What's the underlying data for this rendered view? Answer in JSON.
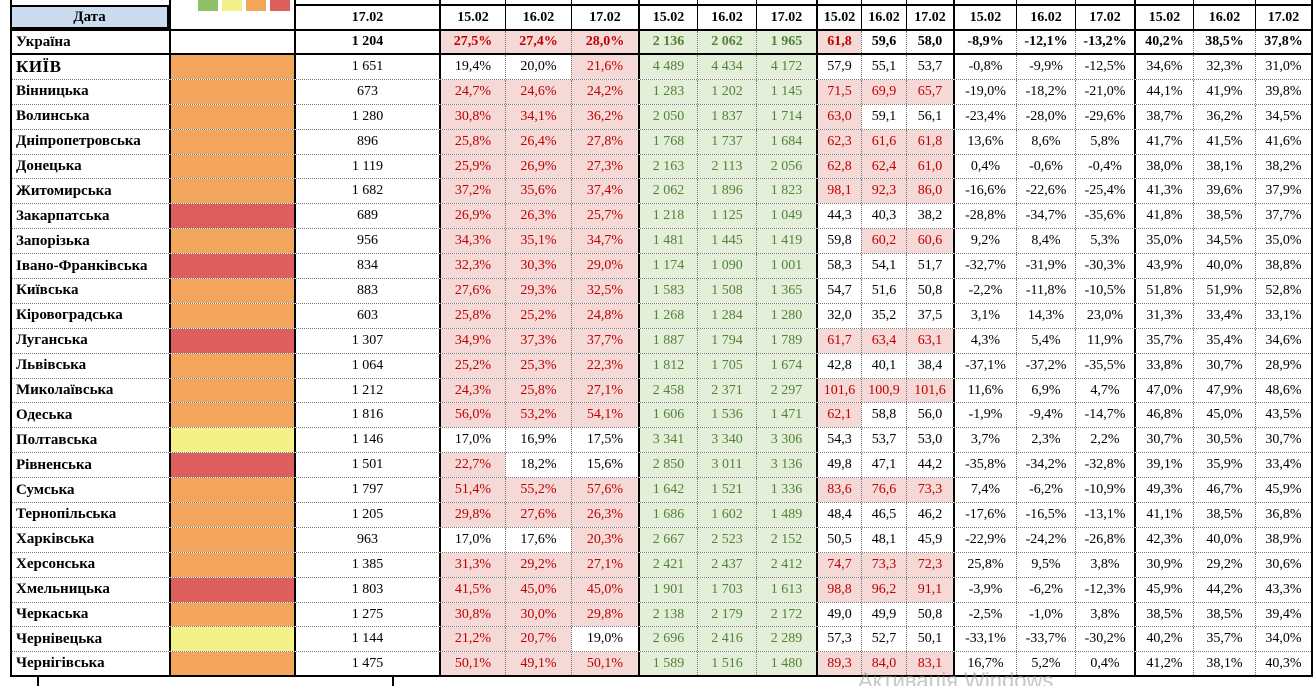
{
  "header": {
    "date_label": "Дата",
    "cases_col": "17.02",
    "group_dates": [
      "15.02",
      "16.02",
      "17.02"
    ]
  },
  "legend": {
    "square_colors": [
      "#8fc06a",
      "#f4f189",
      "#f4a55c",
      "#dd5e5c"
    ],
    "square_names": [
      "green",
      "yellow",
      "orange",
      "red"
    ]
  },
  "palette": {
    "blue_header": "#cbdcf0",
    "pink_bg": "#f5d9d7",
    "dark_red": "#c00000",
    "green_bg": "#e4efda",
    "green_text": "#548235",
    "orange": "#f4a55c",
    "red": "#dd5e5c",
    "yellow": "#f4f189",
    "none": "#ffffff"
  },
  "thresholds": {
    "positivity_pink_above": 20,
    "occupancy_pink_above": 60
  },
  "watermark": "Активація Windows",
  "rows": [
    {
      "name": "Україна",
      "bold": true,
      "risk": "none",
      "cases": "1 204",
      "positivity": [
        "27,5%",
        "27,4%",
        "28,0%"
      ],
      "tests": [
        "2 136",
        "2 062",
        "1 965"
      ],
      "occupancy": [
        "61,8",
        "59,6",
        "58,0"
      ],
      "change": [
        "-8,9%",
        "-12,1%",
        "-13,2%"
      ],
      "share": [
        "40,2%",
        "38,5%",
        "37,8%"
      ]
    },
    {
      "name": "КИЇВ",
      "bold": false,
      "risk": "orange",
      "cases": "1 651",
      "positivity": [
        "19,4%",
        "20,0%",
        "21,6%"
      ],
      "tests": [
        "4 489",
        "4 434",
        "4 172"
      ],
      "occupancy": [
        "57,9",
        "55,1",
        "53,7"
      ],
      "change": [
        "-0,8%",
        "-9,9%",
        "-12,5%"
      ],
      "share": [
        "34,6%",
        "32,3%",
        "31,0%"
      ]
    },
    {
      "name": "Вінницька",
      "bold": false,
      "risk": "orange",
      "cases": "673",
      "positivity": [
        "24,7%",
        "24,6%",
        "24,2%"
      ],
      "tests": [
        "1 283",
        "1 202",
        "1 145"
      ],
      "occupancy": [
        "71,5",
        "69,9",
        "65,7"
      ],
      "change": [
        "-19,0%",
        "-18,2%",
        "-21,0%"
      ],
      "share": [
        "44,1%",
        "41,9%",
        "39,8%"
      ]
    },
    {
      "name": "Волинська",
      "bold": false,
      "risk": "orange",
      "cases": "1 280",
      "positivity": [
        "30,8%",
        "34,1%",
        "36,2%"
      ],
      "tests": [
        "2 050",
        "1 837",
        "1 714"
      ],
      "occupancy": [
        "63,0",
        "59,1",
        "56,1"
      ],
      "change": [
        "-23,4%",
        "-28,0%",
        "-29,6%"
      ],
      "share": [
        "38,7%",
        "36,2%",
        "34,5%"
      ]
    },
    {
      "name": "Дніпропетровська",
      "bold": false,
      "risk": "orange",
      "cases": "896",
      "positivity": [
        "25,8%",
        "26,4%",
        "27,8%"
      ],
      "tests": [
        "1 768",
        "1 737",
        "1 684"
      ],
      "occupancy": [
        "62,3",
        "61,6",
        "61,8"
      ],
      "change": [
        "13,6%",
        "8,6%",
        "5,8%"
      ],
      "share": [
        "41,7%",
        "41,5%",
        "41,6%"
      ]
    },
    {
      "name": "Донецька",
      "bold": false,
      "risk": "orange",
      "cases": "1 119",
      "positivity": [
        "25,9%",
        "26,9%",
        "27,3%"
      ],
      "tests": [
        "2 163",
        "2 113",
        "2 056"
      ],
      "occupancy": [
        "62,8",
        "62,4",
        "61,0"
      ],
      "change": [
        "0,4%",
        "-0,6%",
        "-0,4%"
      ],
      "share": [
        "38,0%",
        "38,1%",
        "38,2%"
      ]
    },
    {
      "name": "Житомирська",
      "bold": false,
      "risk": "orange",
      "cases": "1 682",
      "positivity": [
        "37,2%",
        "35,6%",
        "37,4%"
      ],
      "tests": [
        "2 062",
        "1 896",
        "1 823"
      ],
      "occupancy": [
        "98,1",
        "92,3",
        "86,0"
      ],
      "change": [
        "-16,6%",
        "-22,6%",
        "-25,4%"
      ],
      "share": [
        "41,3%",
        "39,6%",
        "37,9%"
      ]
    },
    {
      "name": "Закарпатська",
      "bold": false,
      "risk": "red",
      "cases": "689",
      "positivity": [
        "26,9%",
        "26,3%",
        "25,7%"
      ],
      "tests": [
        "1 218",
        "1 125",
        "1 049"
      ],
      "occupancy": [
        "44,3",
        "40,3",
        "38,2"
      ],
      "change": [
        "-28,8%",
        "-34,7%",
        "-35,6%"
      ],
      "share": [
        "41,8%",
        "38,5%",
        "37,7%"
      ]
    },
    {
      "name": "Запорізька",
      "bold": false,
      "risk": "orange",
      "cases": "956",
      "positivity": [
        "34,3%",
        "35,1%",
        "34,7%"
      ],
      "tests": [
        "1 481",
        "1 445",
        "1 419"
      ],
      "occupancy": [
        "59,8",
        "60,2",
        "60,6"
      ],
      "change": [
        "9,2%",
        "8,4%",
        "5,3%"
      ],
      "share": [
        "35,0%",
        "34,5%",
        "35,0%"
      ]
    },
    {
      "name": "Івано-Франківська",
      "bold": false,
      "risk": "red",
      "cases": "834",
      "positivity": [
        "32,3%",
        "30,3%",
        "29,0%"
      ],
      "tests": [
        "1 174",
        "1 090",
        "1 001"
      ],
      "occupancy": [
        "58,3",
        "54,1",
        "51,7"
      ],
      "change": [
        "-32,7%",
        "-31,9%",
        "-30,3%"
      ],
      "share": [
        "43,9%",
        "40,0%",
        "38,8%"
      ]
    },
    {
      "name": "Київська",
      "bold": false,
      "risk": "orange",
      "cases": "883",
      "positivity": [
        "27,6%",
        "29,3%",
        "32,5%"
      ],
      "tests": [
        "1 583",
        "1 508",
        "1 365"
      ],
      "occupancy": [
        "54,7",
        "51,6",
        "50,8"
      ],
      "change": [
        "-2,2%",
        "-11,8%",
        "-10,5%"
      ],
      "share": [
        "51,8%",
        "51,9%",
        "52,8%"
      ]
    },
    {
      "name": "Кіровоградська",
      "bold": false,
      "risk": "orange",
      "cases": "603",
      "positivity": [
        "25,8%",
        "25,2%",
        "24,8%"
      ],
      "tests": [
        "1 268",
        "1 284",
        "1 280"
      ],
      "occupancy": [
        "32,0",
        "35,2",
        "37,5"
      ],
      "change": [
        "3,1%",
        "14,3%",
        "23,0%"
      ],
      "share": [
        "31,3%",
        "33,4%",
        "33,1%"
      ]
    },
    {
      "name": "Луганська",
      "bold": false,
      "risk": "red",
      "cases": "1 307",
      "positivity": [
        "34,9%",
        "37,3%",
        "37,7%"
      ],
      "tests": [
        "1 887",
        "1 794",
        "1 789"
      ],
      "occupancy": [
        "61,7",
        "63,4",
        "63,1"
      ],
      "change": [
        "4,3%",
        "5,4%",
        "11,9%"
      ],
      "share": [
        "35,7%",
        "35,4%",
        "34,6%"
      ]
    },
    {
      "name": "Львівська",
      "bold": false,
      "risk": "orange",
      "cases": "1 064",
      "positivity": [
        "25,2%",
        "25,3%",
        "22,3%"
      ],
      "tests": [
        "1 812",
        "1 705",
        "1 674"
      ],
      "occupancy": [
        "42,8",
        "40,1",
        "38,4"
      ],
      "change": [
        "-37,1%",
        "-37,2%",
        "-35,5%"
      ],
      "share": [
        "33,8%",
        "30,7%",
        "28,9%"
      ]
    },
    {
      "name": "Миколаївська",
      "bold": false,
      "risk": "orange",
      "cases": "1 212",
      "positivity": [
        "24,3%",
        "25,8%",
        "27,1%"
      ],
      "tests": [
        "2 458",
        "2 371",
        "2 297"
      ],
      "occupancy": [
        "101,6",
        "100,9",
        "101,6"
      ],
      "change": [
        "11,6%",
        "6,9%",
        "4,7%"
      ],
      "share": [
        "47,0%",
        "47,9%",
        "48,6%"
      ]
    },
    {
      "name": "Одеська",
      "bold": false,
      "risk": "orange",
      "cases": "1 816",
      "positivity": [
        "56,0%",
        "53,2%",
        "54,1%"
      ],
      "tests": [
        "1 606",
        "1 536",
        "1 471"
      ],
      "occupancy": [
        "62,1",
        "58,8",
        "56,0"
      ],
      "change": [
        "-1,9%",
        "-9,4%",
        "-14,7%"
      ],
      "share": [
        "46,8%",
        "45,0%",
        "43,5%"
      ]
    },
    {
      "name": "Полтавська",
      "bold": false,
      "risk": "yellow",
      "cases": "1 146",
      "positivity": [
        "17,0%",
        "16,9%",
        "17,5%"
      ],
      "tests": [
        "3 341",
        "3 340",
        "3 306"
      ],
      "occupancy": [
        "54,3",
        "53,7",
        "53,0"
      ],
      "change": [
        "3,7%",
        "2,3%",
        "2,2%"
      ],
      "share": [
        "30,7%",
        "30,5%",
        "30,7%"
      ]
    },
    {
      "name": "Рівненська",
      "bold": false,
      "risk": "red",
      "cases": "1 501",
      "positivity": [
        "22,7%",
        "18,2%",
        "15,6%"
      ],
      "tests": [
        "2 850",
        "3 011",
        "3 136"
      ],
      "occupancy": [
        "49,8",
        "47,1",
        "44,2"
      ],
      "change": [
        "-35,8%",
        "-34,2%",
        "-32,8%"
      ],
      "share": [
        "39,1%",
        "35,9%",
        "33,4%"
      ]
    },
    {
      "name": "Сумська",
      "bold": false,
      "risk": "orange",
      "cases": "1 797",
      "positivity": [
        "51,4%",
        "55,2%",
        "57,6%"
      ],
      "tests": [
        "1 642",
        "1 521",
        "1 336"
      ],
      "occupancy": [
        "83,6",
        "76,6",
        "73,3"
      ],
      "change": [
        "7,4%",
        "-6,2%",
        "-10,9%"
      ],
      "share": [
        "49,3%",
        "46,7%",
        "45,9%"
      ]
    },
    {
      "name": "Тернопільська",
      "bold": false,
      "risk": "orange",
      "cases": "1 205",
      "positivity": [
        "29,8%",
        "27,6%",
        "26,3%"
      ],
      "tests": [
        "1 686",
        "1 602",
        "1 489"
      ],
      "occupancy": [
        "48,4",
        "46,5",
        "46,2"
      ],
      "change": [
        "-17,6%",
        "-16,5%",
        "-13,1%"
      ],
      "share": [
        "41,1%",
        "38,5%",
        "36,8%"
      ]
    },
    {
      "name": "Харківська",
      "bold": false,
      "risk": "orange",
      "cases": "963",
      "positivity": [
        "17,0%",
        "17,6%",
        "20,3%"
      ],
      "tests": [
        "2 667",
        "2 523",
        "2 152"
      ],
      "occupancy": [
        "50,5",
        "48,1",
        "45,9"
      ],
      "change": [
        "-22,9%",
        "-24,2%",
        "-26,8%"
      ],
      "share": [
        "42,3%",
        "40,0%",
        "38,9%"
      ]
    },
    {
      "name": "Херсонська",
      "bold": false,
      "risk": "orange",
      "cases": "1 385",
      "positivity": [
        "31,3%",
        "29,2%",
        "27,1%"
      ],
      "tests": [
        "2 421",
        "2 437",
        "2 412"
      ],
      "occupancy": [
        "74,7",
        "73,3",
        "72,3"
      ],
      "change": [
        "25,8%",
        "9,5%",
        "3,8%"
      ],
      "share": [
        "30,9%",
        "29,2%",
        "30,6%"
      ]
    },
    {
      "name": "Хмельницька",
      "bold": false,
      "risk": "red",
      "cases": "1 803",
      "positivity": [
        "41,5%",
        "45,0%",
        "45,0%"
      ],
      "tests": [
        "1 901",
        "1 703",
        "1 613"
      ],
      "occupancy": [
        "98,8",
        "96,2",
        "91,1"
      ],
      "change": [
        "-3,9%",
        "-6,2%",
        "-12,3%"
      ],
      "share": [
        "45,9%",
        "44,2%",
        "43,3%"
      ]
    },
    {
      "name": "Черкаська",
      "bold": false,
      "risk": "orange",
      "cases": "1 275",
      "positivity": [
        "30,8%",
        "30,0%",
        "29,8%"
      ],
      "tests": [
        "2 138",
        "2 179",
        "2 172"
      ],
      "occupancy": [
        "49,0",
        "49,9",
        "50,8"
      ],
      "change": [
        "-2,5%",
        "-1,0%",
        "3,8%"
      ],
      "share": [
        "38,5%",
        "38,5%",
        "39,4%"
      ]
    },
    {
      "name": "Чернівецька",
      "bold": false,
      "risk": "yellow",
      "cases": "1 144",
      "positivity": [
        "21,2%",
        "20,7%",
        "19,0%"
      ],
      "tests": [
        "2 696",
        "2 416",
        "2 289"
      ],
      "occupancy": [
        "57,3",
        "52,7",
        "50,1"
      ],
      "change": [
        "-33,1%",
        "-33,7%",
        "-30,2%"
      ],
      "share": [
        "40,2%",
        "35,7%",
        "34,0%"
      ]
    },
    {
      "name": "Чернігівська",
      "bold": false,
      "risk": "orange",
      "cases": "1 475",
      "positivity": [
        "50,1%",
        "49,1%",
        "50,1%"
      ],
      "tests": [
        "1 589",
        "1 516",
        "1 480"
      ],
      "occupancy": [
        "89,3",
        "84,0",
        "83,1"
      ],
      "change": [
        "16,7%",
        "5,2%",
        "0,4%"
      ],
      "share": [
        "41,2%",
        "38,1%",
        "40,3%"
      ]
    }
  ]
}
